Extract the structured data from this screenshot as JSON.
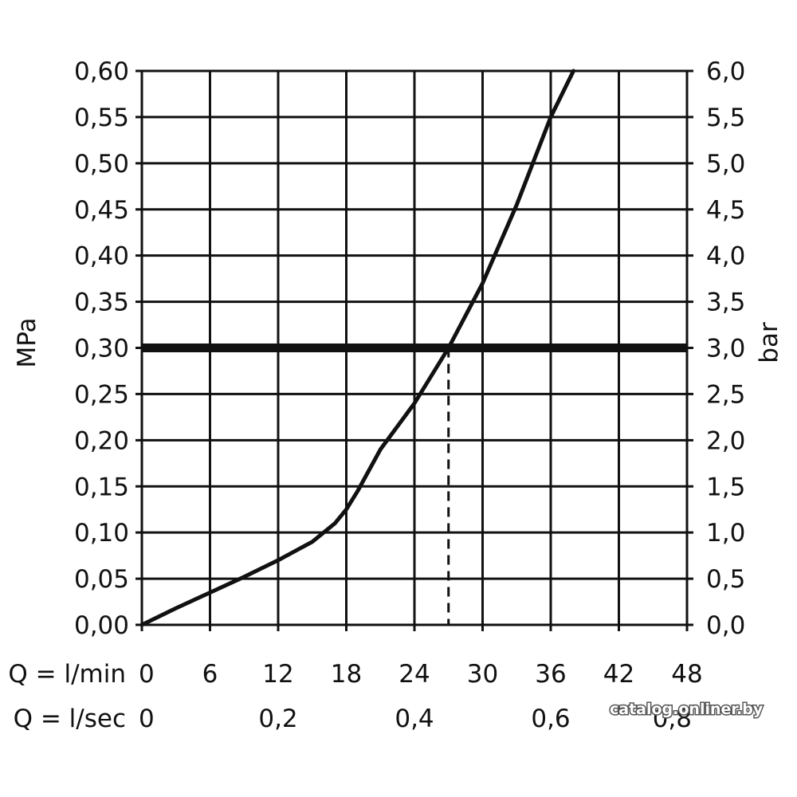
{
  "chart_data": {
    "type": "line",
    "title": "",
    "ylabel_left": "MPa",
    "ylabel_right": "bar",
    "row_label_min": "Q = l/min",
    "row_label_sec": "Q = l/sec",
    "xlim": [
      0,
      48
    ],
    "ylim": [
      0,
      0.6
    ],
    "grid": true,
    "x_ticks": [
      0,
      6,
      12,
      18,
      24,
      30,
      36,
      42,
      48
    ],
    "x_tick_labels": [
      "0",
      "6",
      "12",
      "18",
      "24",
      "30",
      "36",
      "42",
      "48"
    ],
    "x_sec_ticks": [
      0,
      12,
      24,
      36,
      48
    ],
    "x_sec_tick_labels": [
      "0",
      "0,2",
      "0,4",
      "0,6",
      "0,8"
    ],
    "y_ticks": [
      0,
      0.05,
      0.1,
      0.15,
      0.2,
      0.25,
      0.3,
      0.35,
      0.4,
      0.45,
      0.5,
      0.55,
      0.6
    ],
    "y_left_tick_labels": [
      "0,00",
      "0,05",
      "0,10",
      "0,15",
      "0,20",
      "0,25",
      "0,30",
      "0,35",
      "0,40",
      "0,45",
      "0,50",
      "0,55",
      "0,60"
    ],
    "y_right_tick_labels": [
      "0,0",
      "0,5",
      "1,0",
      "1,5",
      "2,0",
      "2,5",
      "3,0",
      "3,5",
      "4,0",
      "4,5",
      "5,0",
      "5,5",
      "6,0"
    ],
    "series": [
      {
        "x": [
          0,
          3,
          6,
          9,
          12,
          15,
          17,
          18,
          19,
          21,
          24,
          27,
          30,
          33,
          36,
          38
        ],
        "values": [
          0,
          0.018,
          0.035,
          0.052,
          0.07,
          0.09,
          0.11,
          0.125,
          0.145,
          0.19,
          0.24,
          0.3,
          0.37,
          0.455,
          0.55,
          0.6
        ]
      }
    ],
    "reference_line_y": 0.3,
    "reference_drop_x": 27,
    "watermark": "catalog.onliner.by"
  }
}
